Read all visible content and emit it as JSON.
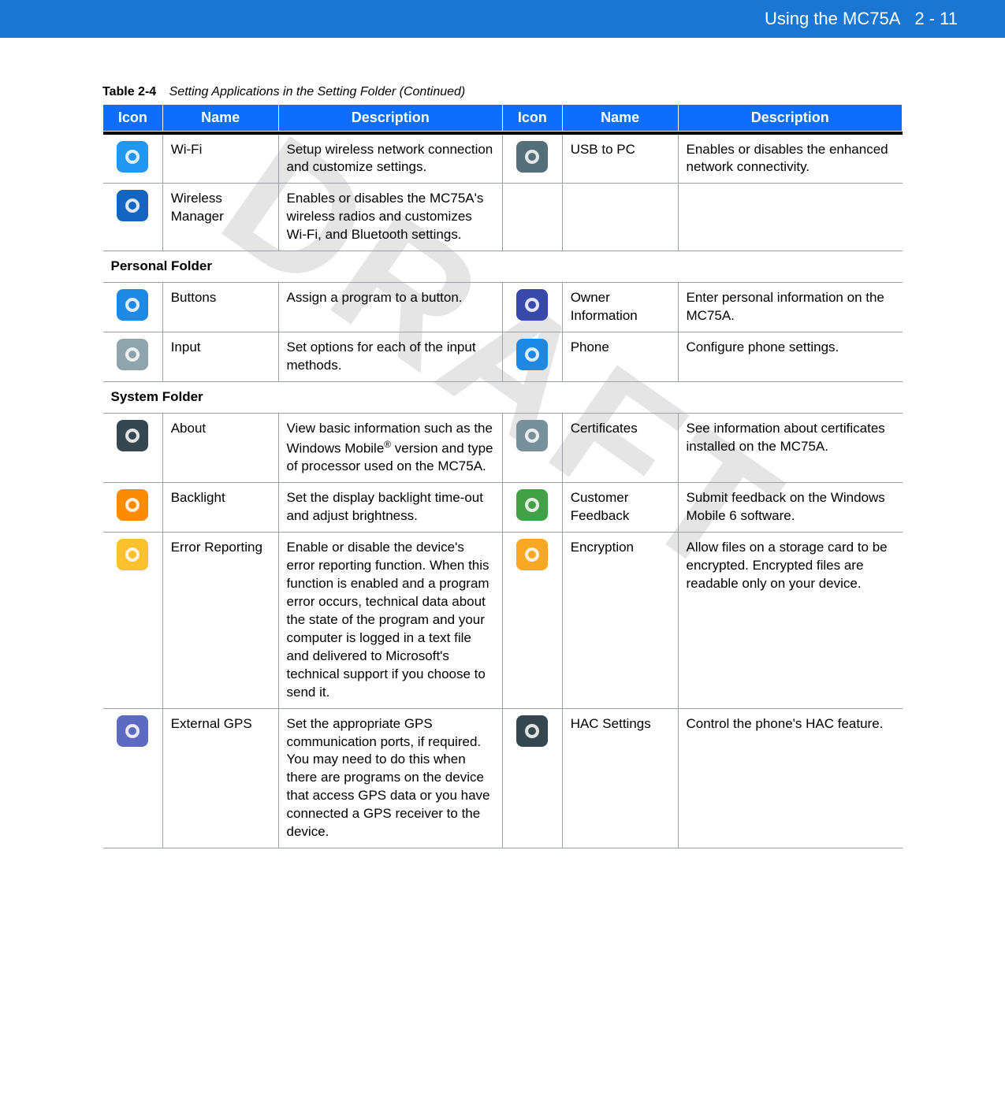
{
  "header": {
    "title": "Using the MC75A",
    "page": "2 - 11"
  },
  "watermark": "DRAFT",
  "caption": {
    "label": "Table 2-4",
    "title": "Setting Applications in the Setting Folder (Continued)"
  },
  "columns": {
    "icon": "Icon",
    "name": "Name",
    "description": "Description"
  },
  "header_bg": "#0d6efd",
  "sections": [
    {
      "rows": [
        {
          "left": {
            "name": "Wi-Fi",
            "desc": "Setup wireless network connection and customize settings.",
            "icon_color": "#2196f3",
            "icon_label": "wifi-icon"
          },
          "right": {
            "name": "USB to PC",
            "desc": "Enables or disables the enhanced network connectivity.",
            "icon_color": "#546e7a",
            "icon_label": "usb-icon"
          }
        },
        {
          "left": {
            "name": "Wireless Manager",
            "desc": "Enables or disables the MC75A's wireless radios and customizes Wi-Fi, and Bluetooth settings.",
            "icon_color": "#1565c0",
            "icon_label": "wireless-manager-icon"
          },
          "right": null
        }
      ]
    },
    {
      "title": "Personal Folder",
      "rows": [
        {
          "left": {
            "name": "Buttons",
            "desc": "Assign a program to a button.",
            "icon_color": "#1e88e5",
            "icon_label": "buttons-icon"
          },
          "right": {
            "name": "Owner Information",
            "desc": "Enter personal information on the MC75A.",
            "icon_color": "#3949ab",
            "icon_label": "owner-info-icon"
          }
        },
        {
          "left": {
            "name": "Input",
            "desc": "Set options for each of the input methods.",
            "icon_color": "#90a4ae",
            "icon_label": "input-icon"
          },
          "right": {
            "name": "Phone",
            "desc": "Configure phone settings.",
            "icon_color": "#1e88e5",
            "icon_label": "phone-icon"
          }
        }
      ]
    },
    {
      "title": "System Folder",
      "rows": [
        {
          "left": {
            "name": "About",
            "desc_html": "View basic information such as the Windows Mobile<sup>®</sup> version and type of processor used on the MC75A.",
            "icon_color": "#37474f",
            "icon_label": "about-icon"
          },
          "right": {
            "name": "Certificates",
            "desc": "See information about certificates installed on the MC75A.",
            "icon_color": "#78909c",
            "icon_label": "certificates-icon"
          }
        },
        {
          "left": {
            "name": "Backlight",
            "desc": "Set the display backlight time-out and adjust brightness.",
            "icon_color": "#fb8c00",
            "icon_label": "backlight-icon"
          },
          "right": {
            "name": "Customer Feedback",
            "desc": "Submit feedback on the Windows Mobile 6 software.",
            "icon_color": "#43a047",
            "icon_label": "feedback-icon"
          }
        },
        {
          "left": {
            "name": "Error Reporting",
            "desc": "Enable or disable the device's error reporting function. When this function is enabled and a program error occurs, technical data about the state of the program and your computer is logged in a text file and delivered to Microsoft's technical support if you choose to send it.",
            "icon_color": "#fbc02d",
            "icon_label": "error-reporting-icon"
          },
          "right": {
            "name": "Encryption",
            "desc": "Allow files on a storage card to be encrypted. Encrypted files are readable only on your device.",
            "icon_color": "#f9a825",
            "icon_label": "encryption-icon"
          }
        },
        {
          "left": {
            "name": "External GPS",
            "desc": "Set the appropriate GPS communication ports, if required. You may need to do this when there are programs on the device that access GPS data or you have connected a GPS receiver to the device.",
            "icon_color": "#5c6bc0",
            "icon_label": "gps-icon"
          },
          "right": {
            "name": "HAC Settings",
            "desc": "Control the phone's HAC feature.",
            "icon_color": "#37474f",
            "icon_label": "hac-icon"
          }
        }
      ]
    }
  ]
}
